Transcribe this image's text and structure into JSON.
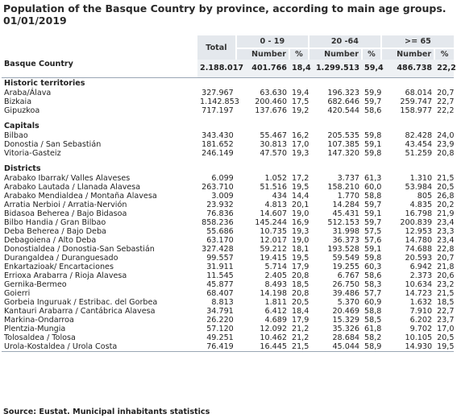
{
  "title": "Population of the Basque Country by province, according to main age groups. 01/01/2019",
  "header": {
    "total": "Total",
    "groups": [
      "0 - 19",
      "20 -64",
      ">= 65"
    ],
    "number": "Number",
    "pct": "%"
  },
  "basque_country": {
    "name": "Basque Country",
    "total": "2.188.017",
    "n1": "401.766",
    "p1": "18,4",
    "n2": "1.299.513",
    "p2": "59,4",
    "n3": "486.738",
    "p3": "22,2"
  },
  "historic": {
    "label": "Historic territories",
    "rows": [
      {
        "name": "Araba/Álava",
        "total": "327.967",
        "n1": "63.630",
        "p1": "19,4",
        "n2": "196.323",
        "p2": "59,9",
        "n3": "68.014",
        "p3": "20,7"
      },
      {
        "name": "Bizkaia",
        "total": "1.142.853",
        "n1": "200.460",
        "p1": "17,5",
        "n2": "682.646",
        "p2": "59,7",
        "n3": "259.747",
        "p3": "22,7"
      },
      {
        "name": "Gipuzkoa",
        "total": "717.197",
        "n1": "137.676",
        "p1": "19,2",
        "n2": "420.544",
        "p2": "58,6",
        "n3": "158.977",
        "p3": "22,2"
      }
    ]
  },
  "capitals": {
    "label": "Capitals",
    "rows": [
      {
        "name": "Bilbao",
        "total": "343.430",
        "n1": "55.467",
        "p1": "16,2",
        "n2": "205.535",
        "p2": "59,8",
        "n3": "82.428",
        "p3": "24,0"
      },
      {
        "name": "Donostia / San Sebastián",
        "total": "181.652",
        "n1": "30.813",
        "p1": "17,0",
        "n2": "107.385",
        "p2": "59,1",
        "n3": "43.454",
        "p3": "23,9"
      },
      {
        "name": "Vitoria-Gasteiz",
        "total": "246.149",
        "n1": "47.570",
        "p1": "19,3",
        "n2": "147.320",
        "p2": "59,8",
        "n3": "51.259",
        "p3": "20,8"
      }
    ]
  },
  "districts": {
    "label": "Districts",
    "rows": [
      {
        "name": "Arabako Ibarrak/ Valles Alaveses",
        "total": "6.099",
        "n1": "1.052",
        "p1": "17,2",
        "n2": "3.737",
        "p2": "61,3",
        "n3": "1.310",
        "p3": "21,5"
      },
      {
        "name": "Arabako Lautada / Llanada Alavesa",
        "total": "263.710",
        "n1": "51.516",
        "p1": "19,5",
        "n2": "158.210",
        "p2": "60,0",
        "n3": "53.984",
        "p3": "20,5"
      },
      {
        "name": "Arabako Mendialdea / Montaña Alavesa",
        "total": "3.009",
        "n1": "434",
        "p1": "14,4",
        "n2": "1.770",
        "p2": "58,8",
        "n3": "805",
        "p3": "26,8"
      },
      {
        "name": "Arratia Nerbioi / Arratia-Nervión",
        "total": "23.932",
        "n1": "4.813",
        "p1": "20,1",
        "n2": "14.284",
        "p2": "59,7",
        "n3": "4.835",
        "p3": "20,2"
      },
      {
        "name": "Bidasoa Beherea / Bajo Bidasoa",
        "total": "76.836",
        "n1": "14.607",
        "p1": "19,0",
        "n2": "45.431",
        "p2": "59,1",
        "n3": "16.798",
        "p3": "21,9"
      },
      {
        "name": "Bilbo Handia / Gran Bilbao",
        "total": "858.236",
        "n1": "145.244",
        "p1": "16,9",
        "n2": "512.153",
        "p2": "59,7",
        "n3": "200.839",
        "p3": "23,4"
      },
      {
        "name": "Deba Beherea / Bajo Deba",
        "total": "55.686",
        "n1": "10.735",
        "p1": "19,3",
        "n2": "31.998",
        "p2": "57,5",
        "n3": "12.953",
        "p3": "23,3"
      },
      {
        "name": "Debagoiena / Alto Deba",
        "total": "63.170",
        "n1": "12.017",
        "p1": "19,0",
        "n2": "36.373",
        "p2": "57,6",
        "n3": "14.780",
        "p3": "23,4"
      },
      {
        "name": "Donostialdea / Donostia-San Sebastián",
        "total": "327.428",
        "n1": "59.212",
        "p1": "18,1",
        "n2": "193.528",
        "p2": "59,1",
        "n3": "74.688",
        "p3": "22,8"
      },
      {
        "name": "Durangaldea / Duranguesado",
        "total": "99.557",
        "n1": "19.415",
        "p1": "19,5",
        "n2": "59.549",
        "p2": "59,8",
        "n3": "20.593",
        "p3": "20,7"
      },
      {
        "name": "Enkartazioak/ Encartaciones",
        "total": "31.911",
        "n1": "5.714",
        "p1": "17,9",
        "n2": "19.255",
        "p2": "60,3",
        "n3": "6.942",
        "p3": "21,8"
      },
      {
        "name": "Errioxa Arabarra / Rioja Alavesa",
        "total": "11.545",
        "n1": "2.405",
        "p1": "20,8",
        "n2": "6.767",
        "p2": "58,6",
        "n3": "2.373",
        "p3": "20,6"
      },
      {
        "name": "Gernika-Bermeo",
        "total": "45.877",
        "n1": "8.493",
        "p1": "18,5",
        "n2": "26.750",
        "p2": "58,3",
        "n3": "10.634",
        "p3": "23,2"
      },
      {
        "name": "Goierri",
        "total": "68.407",
        "n1": "14.198",
        "p1": "20,8",
        "n2": "39.486",
        "p2": "57,7",
        "n3": "14.723",
        "p3": "21,5"
      },
      {
        "name": "Gorbeia Inguruak / Estribac. del Gorbea",
        "total": "8.813",
        "n1": "1.811",
        "p1": "20,5",
        "n2": "5.370",
        "p2": "60,9",
        "n3": "1.632",
        "p3": "18,5"
      },
      {
        "name": "Kantauri Arabarra / Cantábrica Alavesa",
        "total": "34.791",
        "n1": "6.412",
        "p1": "18,4",
        "n2": "20.469",
        "p2": "58,8",
        "n3": "7.910",
        "p3": "22,7"
      },
      {
        "name": "Markina-Ondarroa",
        "total": "26.220",
        "n1": "4.689",
        "p1": "17,9",
        "n2": "15.329",
        "p2": "58,5",
        "n3": "6.202",
        "p3": "23,7"
      },
      {
        "name": "Plentzia-Mungia",
        "total": "57.120",
        "n1": "12.092",
        "p1": "21,2",
        "n2": "35.326",
        "p2": "61,8",
        "n3": "9.702",
        "p3": "17,0"
      },
      {
        "name": "Tolosaldea / Tolosa",
        "total": "49.251",
        "n1": "10.462",
        "p1": "21,2",
        "n2": "28.684",
        "p2": "58,2",
        "n3": "10.105",
        "p3": "20,5"
      },
      {
        "name": "Urola-Kostaldea / Urola Costa",
        "total": "76.419",
        "n1": "16.445",
        "p1": "21,5",
        "n2": "45.044",
        "p2": "58,9",
        "n3": "14.930",
        "p3": "19,5"
      }
    ]
  },
  "source": "Source: Eustat. Municipal inhabitants statistics"
}
